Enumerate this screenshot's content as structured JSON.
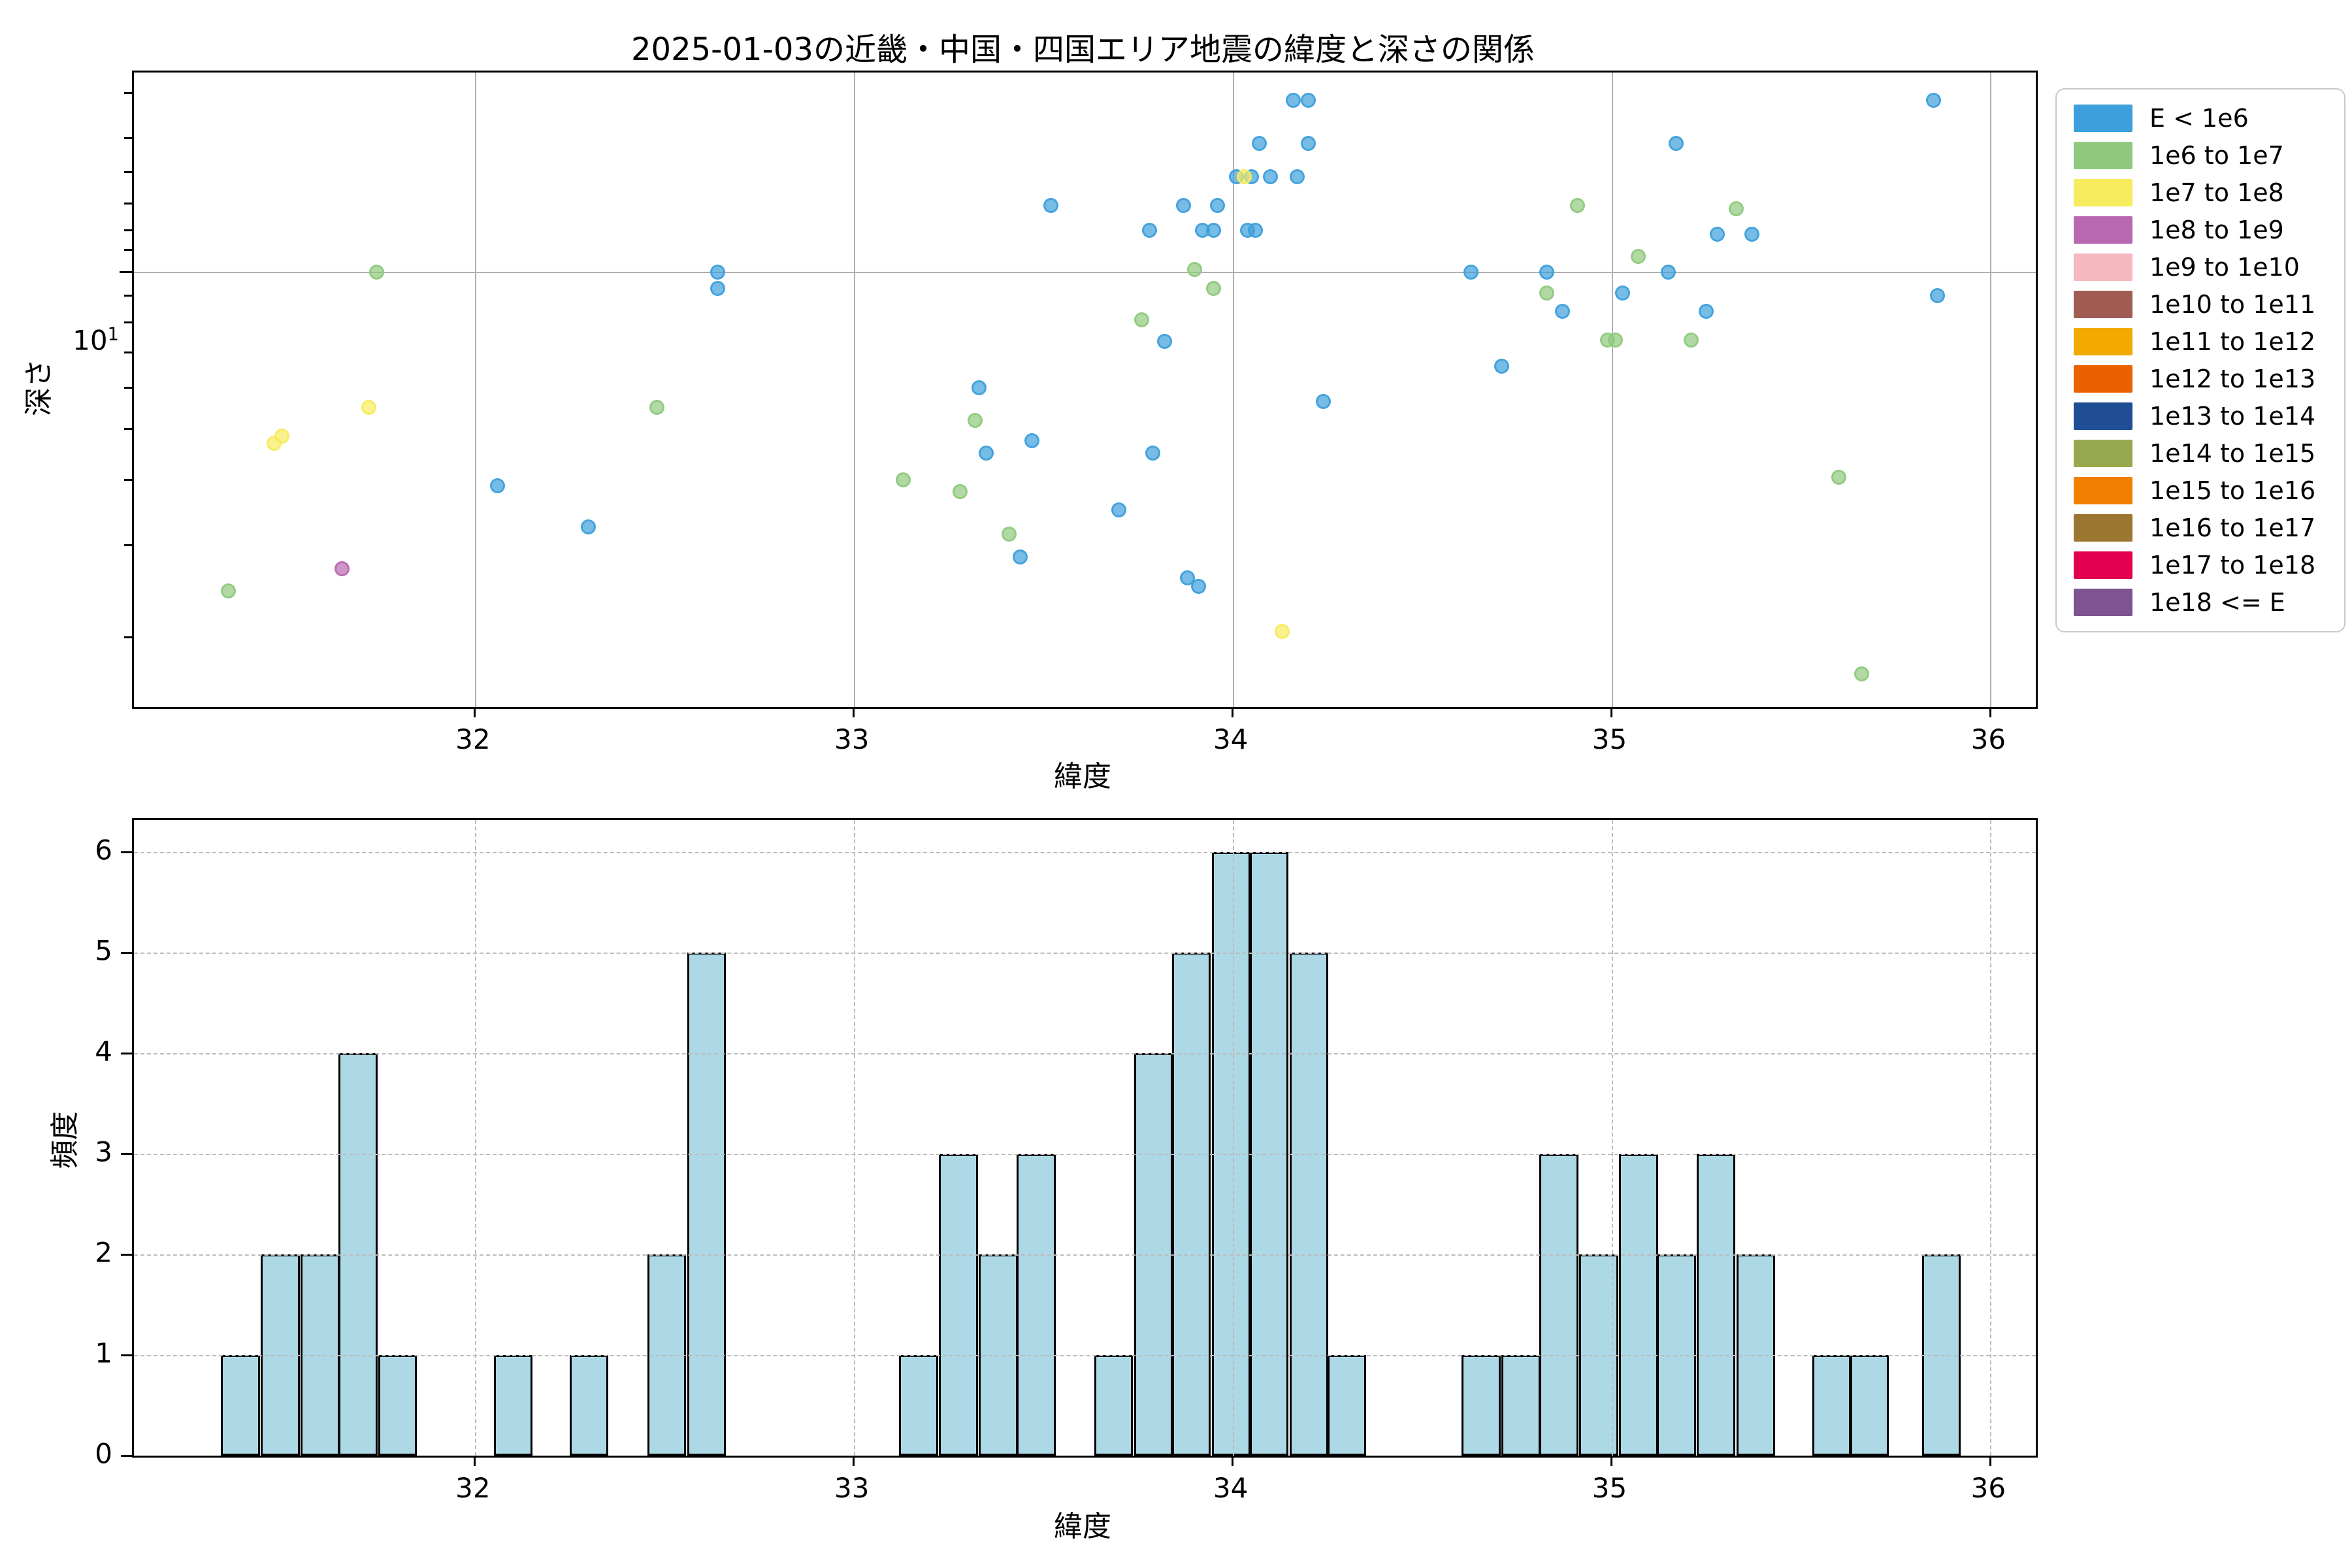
{
  "title": "2025-01-03の近畿・中国・四国エリア地震の緯度と深さの関係",
  "chart_data": [
    {
      "type": "scatter",
      "xlabel": "緯度",
      "ylabel": "深さ",
      "x_ticks": [
        32,
        33,
        34,
        35,
        36
      ],
      "xlim": [
        31.1,
        36.12
      ],
      "y_scale": "log",
      "ylim": [
        1.47,
        24.0
      ],
      "y_major_ticks": [
        10
      ],
      "y_major_tick_label": "10^1",
      "y_minor_ticks": [
        2,
        3,
        4,
        5,
        6,
        7,
        8,
        9,
        11,
        12,
        13.5,
        15.5,
        18,
        22
      ],
      "grid": true,
      "legend_position": "upper right outside",
      "series": [
        {
          "name": "E < 1e6",
          "color": "#3D9FDB",
          "points": [
            [
              32.06,
              3.9
            ],
            [
              32.3,
              3.25
            ],
            [
              32.64,
              10.0
            ],
            [
              32.64,
              9.3
            ],
            [
              33.33,
              6.0
            ],
            [
              33.35,
              4.5
            ],
            [
              33.44,
              2.85
            ],
            [
              33.47,
              4.75
            ],
            [
              33.52,
              13.4
            ],
            [
              33.7,
              3.5
            ],
            [
              33.78,
              12.0
            ],
            [
              33.92,
              12.0
            ],
            [
              33.95,
              12.0
            ],
            [
              34.04,
              12.0
            ],
            [
              34.06,
              12.0
            ],
            [
              33.79,
              4.5
            ],
            [
              33.82,
              7.35
            ],
            [
              33.87,
              13.4
            ],
            [
              33.88,
              2.6
            ],
            [
              33.91,
              2.5
            ],
            [
              33.96,
              13.4
            ],
            [
              34.01,
              15.2
            ],
            [
              34.05,
              15.2
            ],
            [
              34.1,
              15.2
            ],
            [
              34.17,
              15.2
            ],
            [
              34.07,
              17.6
            ],
            [
              34.2,
              17.6
            ],
            [
              34.16,
              21.3
            ],
            [
              34.2,
              21.3
            ],
            [
              34.24,
              5.65
            ],
            [
              34.63,
              10.0
            ],
            [
              34.71,
              6.6
            ],
            [
              34.83,
              10.0
            ],
            [
              34.87,
              8.4
            ],
            [
              35.03,
              9.1
            ],
            [
              35.15,
              10.0
            ],
            [
              35.17,
              17.6
            ],
            [
              35.25,
              8.4
            ],
            [
              35.28,
              11.8
            ],
            [
              35.37,
              11.8
            ],
            [
              35.85,
              21.3
            ],
            [
              35.86,
              9.0
            ]
          ]
        },
        {
          "name": "1e6 to 1e7",
          "color": "#8FC97D",
          "points": [
            [
              31.35,
              2.45
            ],
            [
              31.74,
              10.0
            ],
            [
              32.48,
              5.5
            ],
            [
              33.13,
              4.0
            ],
            [
              33.28,
              3.8
            ],
            [
              33.32,
              5.2
            ],
            [
              33.41,
              3.15
            ],
            [
              33.76,
              8.1
            ],
            [
              33.9,
              10.1
            ],
            [
              33.95,
              9.3
            ],
            [
              34.83,
              9.1
            ],
            [
              34.91,
              13.4
            ],
            [
              34.99,
              7.4
            ],
            [
              35.01,
              7.4
            ],
            [
              35.07,
              10.7
            ],
            [
              35.21,
              7.4
            ],
            [
              35.33,
              13.2
            ],
            [
              35.6,
              4.05
            ],
            [
              35.66,
              1.7
            ]
          ]
        },
        {
          "name": "1e7 to 1e8",
          "color": "#F6EC5E",
          "points": [
            [
              31.47,
              4.7
            ],
            [
              31.49,
              4.85
            ],
            [
              31.72,
              5.5
            ],
            [
              34.03,
              15.2
            ],
            [
              34.13,
              2.05
            ]
          ]
        },
        {
          "name": "1e8 to 1e9",
          "color": "#B868B1",
          "points": [
            [
              31.65,
              2.7
            ]
          ]
        },
        {
          "name": "1e9 to 1e10",
          "color": "#F4B8BE",
          "points": []
        },
        {
          "name": "1e10 to 1e11",
          "color": "#A05C52",
          "points": []
        },
        {
          "name": "1e11 to 1e12",
          "color": "#F2A900",
          "points": []
        },
        {
          "name": "1e12 to 1e13",
          "color": "#EB6100",
          "points": []
        },
        {
          "name": "1e13 to 1e14",
          "color": "#1F4E96",
          "points": []
        },
        {
          "name": "1e14 to 1e15",
          "color": "#96A94F",
          "points": []
        },
        {
          "name": "1e15 to 1e16",
          "color": "#F28000",
          "points": []
        },
        {
          "name": "1e16 to 1e17",
          "color": "#9A7630",
          "points": []
        },
        {
          "name": "1e17 to 1e18",
          "color": "#E2004F",
          "points": []
        },
        {
          "name": "1e18 <= E",
          "color": "#7D5391",
          "points": []
        }
      ]
    },
    {
      "type": "bar",
      "xlabel": "緯度",
      "ylabel": "頻度",
      "x_ticks": [
        32,
        33,
        34,
        35,
        36
      ],
      "xlim": [
        31.1,
        36.12
      ],
      "y_ticks": [
        0,
        1,
        2,
        3,
        4,
        5,
        6
      ],
      "ylim": [
        0,
        6.31
      ],
      "grid": true,
      "bar_color": "#ADD8E6",
      "bar_edge_color": "#000000",
      "bin_width": 0.1025,
      "bars": [
        {
          "x": 31.33,
          "h": 1
        },
        {
          "x": 31.435,
          "h": 2
        },
        {
          "x": 31.54,
          "h": 2
        },
        {
          "x": 31.64,
          "h": 4
        },
        {
          "x": 31.745,
          "h": 1
        },
        {
          "x": 32.05,
          "h": 1
        },
        {
          "x": 32.25,
          "h": 1
        },
        {
          "x": 32.455,
          "h": 2
        },
        {
          "x": 32.56,
          "h": 5
        },
        {
          "x": 33.12,
          "h": 1
        },
        {
          "x": 33.225,
          "h": 3
        },
        {
          "x": 33.33,
          "h": 2
        },
        {
          "x": 33.43,
          "h": 3
        },
        {
          "x": 33.635,
          "h": 1
        },
        {
          "x": 33.74,
          "h": 4
        },
        {
          "x": 33.84,
          "h": 5
        },
        {
          "x": 33.945,
          "h": 6
        },
        {
          "x": 34.045,
          "h": 6
        },
        {
          "x": 34.15,
          "h": 5
        },
        {
          "x": 34.25,
          "h": 1
        },
        {
          "x": 34.605,
          "h": 1
        },
        {
          "x": 34.71,
          "h": 1
        },
        {
          "x": 34.81,
          "h": 3
        },
        {
          "x": 34.915,
          "h": 2
        },
        {
          "x": 35.02,
          "h": 3
        },
        {
          "x": 35.12,
          "h": 2
        },
        {
          "x": 35.225,
          "h": 3
        },
        {
          "x": 35.33,
          "h": 2
        },
        {
          "x": 35.53,
          "h": 1
        },
        {
          "x": 35.63,
          "h": 1
        },
        {
          "x": 35.82,
          "h": 2
        }
      ]
    }
  ]
}
